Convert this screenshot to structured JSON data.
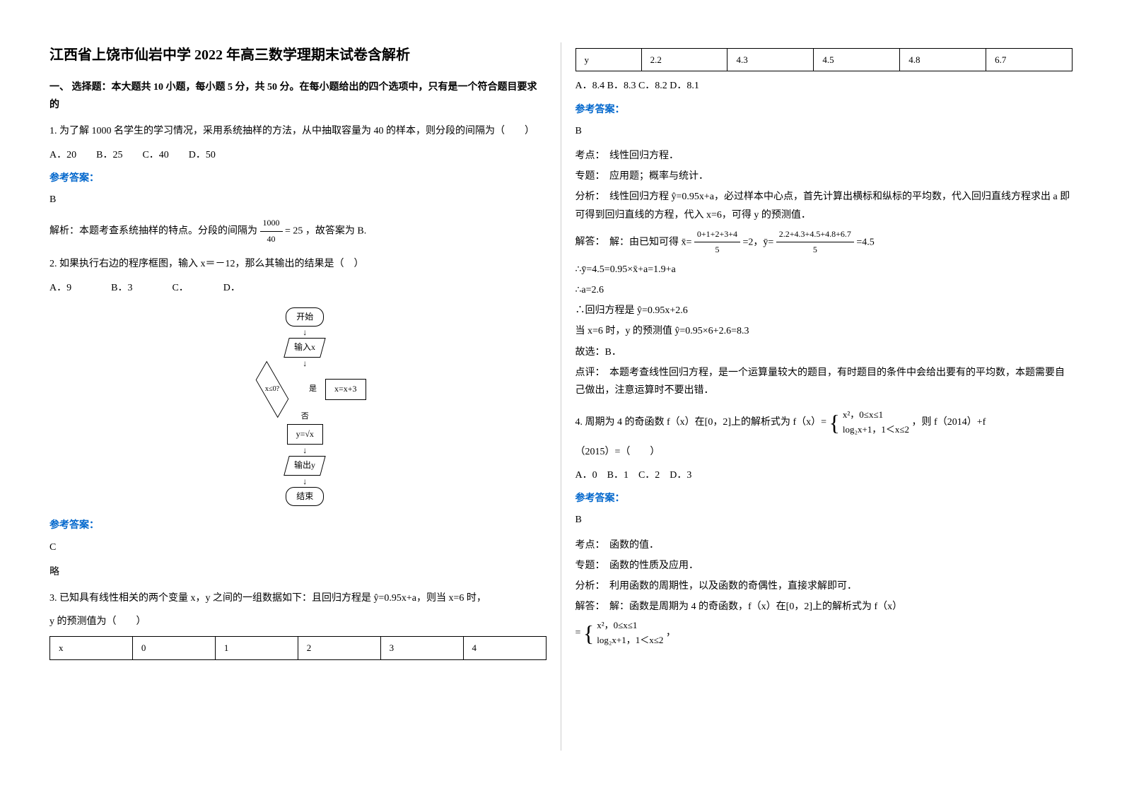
{
  "title": "江西省上饶市仙岩中学 2022 年高三数学理期末试卷含解析",
  "section1": "一、 选择题：本大题共 10 小题，每小题 5 分，共 50 分。在每小题给出的四个选项中，只有是一个符合题目要求的",
  "q1": {
    "text": "1. 为了解 1000 名学生的学习情况，采用系统抽样的方法，从中抽取容量为 40 的样本，则分段的间隔为（　　）",
    "options": "A．20　　B．25　　C．40　　D．50",
    "answer_label": "参考答案：",
    "answer": "B",
    "explain": "解析：本题考查系统抽样的特点。分段的间隔为",
    "frac_num": "1000",
    "frac_den": "40",
    "frac_result": "= 25",
    "explain_end": "，故答案为 B."
  },
  "q2": {
    "text": "2. 如果执行右边的程序框图，输入 x＝－12，那么其输出的结果是（　）",
    "options": "A．9　　　　B．3　　　　C．　　　　D．",
    "flow": {
      "start": "开始",
      "input": "输入x",
      "cond": "x≤0?",
      "yes": "是",
      "no": "否",
      "assign": "x=x+3",
      "calc": "y=√x",
      "output": "输出y",
      "end": "结束"
    },
    "answer_label": "参考答案：",
    "answer": "C",
    "note": "略"
  },
  "q3": {
    "text_a": "3. 已知具有线性相关的两个变量 x，y 之间的一组数据如下：且回归方程是",
    "text_b": "=0.95x+a，则当 x=6 时，",
    "text_c": "y 的预测值为（　　）",
    "table": {
      "row1": [
        "x",
        "0",
        "1",
        "2",
        "3",
        "4"
      ],
      "row2": [
        "y",
        "2.2",
        "4.3",
        "4.5",
        "4.8",
        "6.7"
      ]
    },
    "options": "A．8.4 B．8.3 C．8.2 D．8.1",
    "answer_label": "参考答案：",
    "answer": "B",
    "topic_label": "考点：",
    "topic": "线性回归方程．",
    "special_label": "专题：",
    "special": "应用题；概率与统计．",
    "analysis_label": "分析：",
    "analysis": "线性回归方程 ŷ=0.95x+a，必过样本中心点，首先计算出横标和纵标的平均数，代入回归直线方程求出 a 即可得到回归直线的方程，代入 x=6，可得 y 的预测值．",
    "solve_label": "解答：",
    "solve_prefix": "解：由已知可得 x̄=",
    "frac1_num": "0+1+2+3+4",
    "frac1_den": "5",
    "mid1": "=2，ȳ=",
    "frac2_num": "2.2+4.3+4.5+4.8+6.7",
    "frac2_den": "5",
    "mid2": "=4.5",
    "line2": "∴ȳ=4.5=0.95×x̄+a=1.9+a",
    "line3": "∴a=2.6",
    "line4": "∴回归方程是 ŷ=0.95x+2.6",
    "line5": "当 x=6 时，y 的预测值 ŷ=0.95×6+2.6=8.3",
    "line6": "故选：B．",
    "comment_label": "点评：",
    "comment": "本题考查线性回归方程，是一个运算量较大的题目，有时题目的条件中会给出要有的平均数，本题需要自己做出，注意运算时不要出错．"
  },
  "q4": {
    "text_a": "4. 周期为 4 的奇函数 f（x）在[0，2]上的解析式为 f（x）=",
    "pw1": "x²，0≤x≤1",
    "pw2": "log₂x+1，1＜x≤2",
    "text_b": "，则 f（2014）+f",
    "text_c": "（2015）=（　　）",
    "options": "A．0　B．1　C．2　D．3",
    "answer_label": "参考答案：",
    "answer": "B",
    "topic_label": "考点：",
    "topic": "函数的值．",
    "special_label": "专题：",
    "special": "函数的性质及应用．",
    "analysis_label": "分析：",
    "analysis": "利用函数的周期性，以及函数的奇偶性，直接求解即可．",
    "solve_label": "解答：",
    "solve": "解：函数是周期为 4 的奇函数，f（x）在[0，2]上的解析式为 f（x）",
    "eq_prefix": "=",
    "pw3": "x²，0≤x≤1",
    "pw4": "log₂x+1，1＜x≤2",
    "eq_suffix": "，"
  }
}
